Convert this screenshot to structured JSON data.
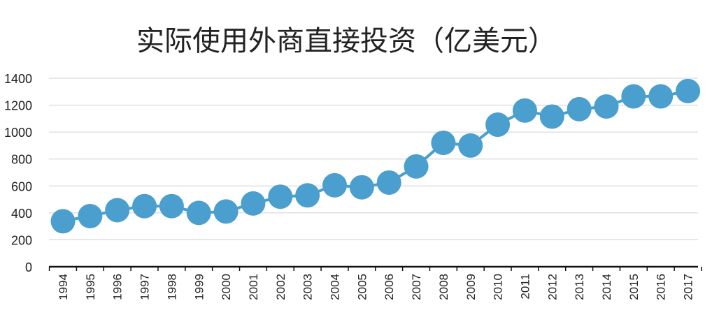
{
  "chart_data": {
    "type": "line",
    "title": "实际使用外商直接投资（亿美元）",
    "x": [
      "1994",
      "1995",
      "1996",
      "1997",
      "1998",
      "1999",
      "2000",
      "2001",
      "2002",
      "2003",
      "2004",
      "2005",
      "2006",
      "2007",
      "2008",
      "2009",
      "2010",
      "2011",
      "2012",
      "2013",
      "2014",
      "2015",
      "2016",
      "2017"
    ],
    "series": [
      {
        "values": [
          338,
          376,
          420,
          450,
          450,
          400,
          410,
          470,
          520,
          530,
          605,
          590,
          625,
          745,
          920,
          900,
          1055,
          1160,
          1115,
          1170,
          1190,
          1265,
          1265,
          1305
        ]
      }
    ],
    "yticks": [
      "0",
      "200",
      "400",
      "600",
      "800",
      "1000",
      "1200",
      "1400"
    ],
    "ylim": [
      0,
      1400
    ],
    "grid": true,
    "colors": {
      "series": "#4a9fce",
      "grid": "#d0d0d0",
      "axis": "#111111"
    }
  }
}
